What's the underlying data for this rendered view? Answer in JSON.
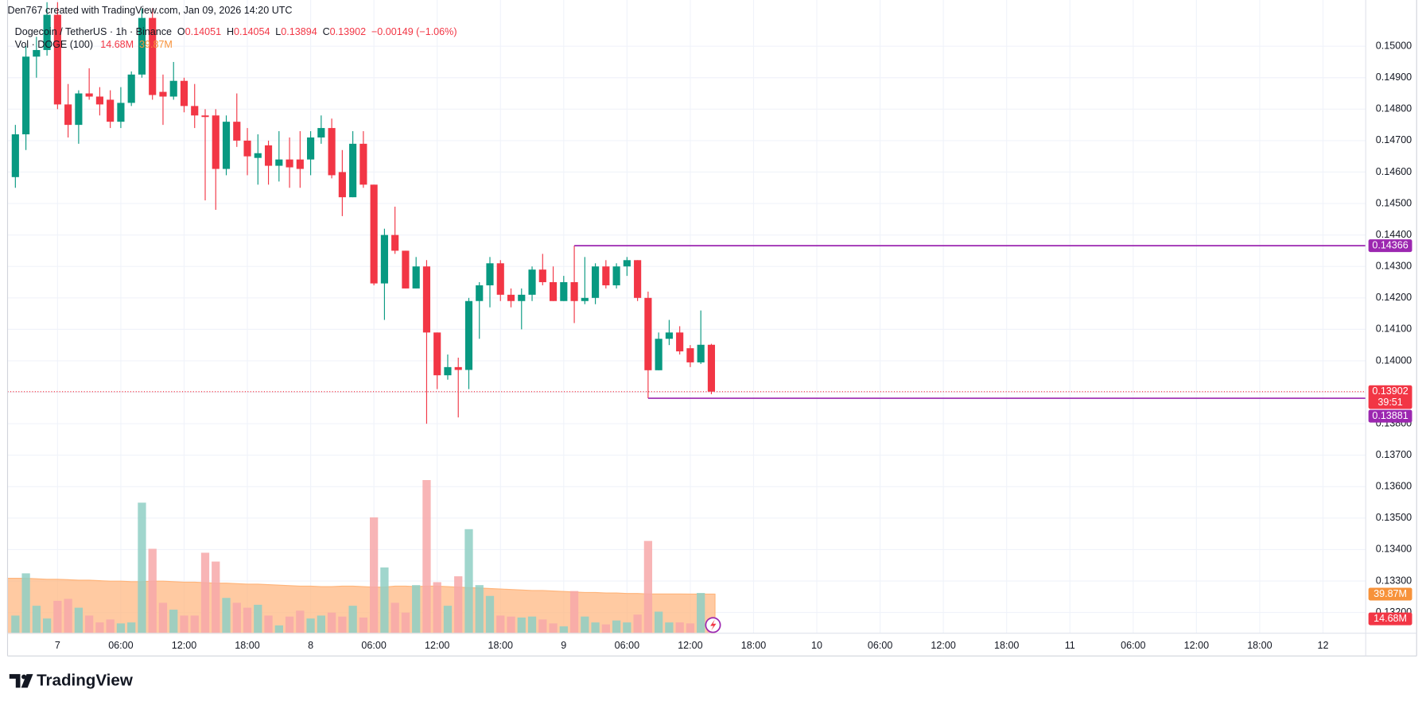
{
  "chart_data": {
    "type": "candlestick",
    "credit": "Den767 created with TradingView.com, Jan 09, 2026 14:20 UTC",
    "symbol": "Dogecoin / TetherUS · 1h · Binance",
    "ohlc_legend": [
      {
        "key": "O",
        "value": 0.14051
      },
      {
        "key": "H",
        "value": 0.14054
      },
      {
        "key": "L",
        "value": 0.13894
      },
      {
        "key": "C",
        "value": 0.13902
      }
    ],
    "change": {
      "value": -0.00149,
      "label": "−0.00149 (−1.06%)"
    },
    "volume_title": "Vol · DOGE (100)",
    "volume_last": {
      "value": 14.68,
      "label": "14.68M"
    },
    "volume_ma_last": {
      "value": 39.87,
      "label": "39.87M"
    },
    "countdown": "39:51",
    "brand": "TradingView",
    "up_color": "#089981",
    "down_color": "#f23645",
    "volume_up_color": "#8fcfc4",
    "volume_down_color": "#f7a8a9",
    "volume_ma_color": "#ffb47a",
    "level_color": "#9c27b0",
    "grid": true,
    "ylim": [
      0.13134,
      0.15147
    ],
    "yticks": [
      {
        "value": 0.132,
        "label": "0.13200"
      },
      {
        "value": 0.133,
        "label": "0.13300"
      },
      {
        "value": 0.134,
        "label": "0.13400"
      },
      {
        "value": 0.135,
        "label": "0.13500"
      },
      {
        "value": 0.136,
        "label": "0.13600"
      },
      {
        "value": 0.137,
        "label": "0.13700"
      },
      {
        "value": 0.138,
        "label": "0.13800"
      },
      {
        "value": 0.139,
        "label": "0.13900"
      },
      {
        "value": 0.14,
        "label": "0.14000"
      },
      {
        "value": 0.141,
        "label": "0.14100"
      },
      {
        "value": 0.142,
        "label": "0.14200"
      },
      {
        "value": 0.143,
        "label": "0.14300"
      },
      {
        "value": 0.144,
        "label": "0.14400"
      },
      {
        "value": 0.145,
        "label": "0.14500"
      },
      {
        "value": 0.146,
        "label": "0.14600"
      },
      {
        "value": 0.147,
        "label": "0.14700"
      },
      {
        "value": 0.148,
        "label": "0.14800"
      },
      {
        "value": 0.149,
        "label": "0.14900"
      },
      {
        "value": 0.15,
        "label": "0.15000"
      }
    ],
    "y2lim": [
      0,
      645
    ],
    "levels": [
      {
        "value": 0.14366,
        "start": 53
      },
      {
        "value": 0.13881,
        "start": 60
      }
    ],
    "categories": [
      null,
      null,
      null,
      null,
      "7",
      null,
      null,
      null,
      null,
      null,
      "06:00",
      null,
      null,
      null,
      null,
      null,
      "12:00",
      null,
      null,
      null,
      null,
      null,
      "18:00",
      null,
      null,
      null,
      null,
      null,
      "8",
      null,
      null,
      null,
      null,
      null,
      "06:00",
      null,
      null,
      null,
      null,
      null,
      "12:00",
      null,
      null,
      null,
      null,
      null,
      "18:00",
      null,
      null,
      null,
      null,
      null,
      "9",
      null,
      null,
      null,
      null,
      null,
      "06:00",
      null,
      null,
      null,
      null,
      null,
      "12:00",
      null,
      null,
      null,
      null,
      null,
      "18:00",
      null,
      null,
      null,
      null,
      null,
      "10",
      null,
      null,
      null,
      null,
      null,
      "06:00",
      null,
      null,
      null,
      null,
      null,
      "12:00",
      null,
      null,
      null,
      null,
      null,
      "18:00",
      null,
      null,
      null,
      null,
      null,
      "11",
      null,
      null,
      null,
      null,
      null,
      "06:00",
      null,
      null,
      null,
      null,
      null,
      "12:00",
      null,
      null,
      null,
      null,
      null,
      "18:00",
      null,
      null,
      null,
      null,
      null,
      "12",
      null,
      null,
      null
    ],
    "open": [
      0.14584,
      0.1472,
      0.14967,
      0.14988,
      0.151,
      0.14815,
      0.1475,
      0.1485,
      0.1484,
      0.1483,
      0.1476,
      0.1482,
      0.1491,
      0.1509,
      0.14855,
      0.1484,
      0.1489,
      0.1481,
      0.1478,
      0.1478,
      0.1461,
      0.1476,
      0.147,
      0.14645,
      0.14685,
      0.1462,
      0.1464,
      0.1464,
      0.1464,
      0.1471,
      0.1474,
      0.146,
      0.1452,
      0.1469,
      0.1456,
      0.14246,
      0.144,
      0.1435,
      0.1423,
      0.143,
      0.1409,
      0.13954,
      0.1398,
      0.13971,
      0.1419,
      0.1424,
      0.1431,
      0.1421,
      0.1419,
      0.1421,
      0.1429,
      0.1425,
      0.1419,
      0.1425,
      0.1419,
      0.142,
      0.143,
      0.1424,
      0.143,
      0.1432,
      0.142,
      0.1397,
      0.1407,
      0.1409,
      0.1404,
      0.13995,
      0.14051,
      null,
      null,
      null,
      null,
      null,
      null,
      null,
      null,
      null,
      null,
      null,
      null,
      null,
      null,
      null,
      null,
      null,
      null,
      null,
      null,
      null,
      null,
      null,
      null,
      null,
      null,
      null,
      null,
      null,
      null,
      null,
      null,
      null,
      null,
      null,
      null,
      null,
      null,
      null,
      null,
      null,
      null,
      null,
      null,
      null,
      null,
      null,
      null,
      null,
      null,
      null,
      null,
      null,
      null,
      null,
      null,
      null,
      null,
      null,
      null,
      null
    ],
    "high": [
      0.1475,
      0.15,
      0.1503,
      0.1514,
      0.1514,
      0.1488,
      0.1486,
      0.1493,
      0.1487,
      0.1486,
      0.1487,
      0.1492,
      0.1512,
      0.1512,
      0.1491,
      0.1495,
      0.149,
      0.1488,
      0.148,
      0.148,
      0.1478,
      0.1485,
      0.1474,
      0.1472,
      0.147,
      0.1473,
      0.1471,
      0.1473,
      0.1473,
      0.1478,
      0.1477,
      0.1467,
      0.1473,
      0.1473,
      0.1456,
      0.1442,
      0.1449,
      0.1435,
      0.1433,
      0.1432,
      0.1409,
      0.1402,
      0.1401,
      0.142,
      0.1425,
      0.1433,
      0.1432,
      0.1423,
      0.1423,
      0.143,
      0.1434,
      0.143,
      0.1427,
      0.14366,
      0.1433,
      0.1431,
      0.1432,
      0.1431,
      0.1433,
      0.1432,
      0.1422,
      0.1409,
      0.1413,
      0.1411,
      0.1405,
      0.1416,
      0.14054,
      null,
      null,
      null,
      null,
      null,
      null,
      null,
      null,
      null,
      null,
      null,
      null,
      null,
      null,
      null,
      null,
      null,
      null,
      null,
      null,
      null,
      null,
      null,
      null,
      null,
      null,
      null,
      null,
      null,
      null,
      null,
      null,
      null,
      null,
      null,
      null,
      null,
      null,
      null,
      null,
      null,
      null,
      null,
      null,
      null,
      null,
      null,
      null,
      null,
      null,
      null,
      null,
      null,
      null,
      null,
      null,
      null,
      null,
      null,
      null,
      null
    ],
    "low": [
      0.1455,
      0.1467,
      0.149,
      0.1497,
      0.148,
      0.1471,
      0.1469,
      0.1483,
      0.1478,
      0.1474,
      0.1474,
      0.1481,
      0.149,
      0.1483,
      0.1475,
      0.1483,
      0.1479,
      0.1474,
      0.1451,
      0.1448,
      0.1459,
      0.1468,
      0.1459,
      0.1456,
      0.1456,
      0.1457,
      0.1455,
      0.1455,
      0.1459,
      0.1469,
      0.1458,
      0.1446,
      0.1452,
      0.1455,
      0.1424,
      0.1413,
      0.1434,
      0.1423,
      0.1423,
      0.138,
      0.1391,
      0.1394,
      0.1382,
      0.1391,
      0.1407,
      0.1417,
      0.1419,
      0.1417,
      0.141,
      0.1419,
      0.1424,
      0.1419,
      0.1419,
      0.1412,
      0.1418,
      0.1418,
      0.1423,
      0.1423,
      0.1427,
      0.1419,
      0.13881,
      0.1397,
      0.1405,
      0.1402,
      0.1398,
      0.1399,
      0.13894,
      null,
      null,
      null,
      null,
      null,
      null,
      null,
      null,
      null,
      null,
      null,
      null,
      null,
      null,
      null,
      null,
      null,
      null,
      null,
      null,
      null,
      null,
      null,
      null,
      null,
      null,
      null,
      null,
      null,
      null,
      null,
      null,
      null,
      null,
      null,
      null,
      null,
      null,
      null,
      null,
      null,
      null,
      null,
      null,
      null,
      null,
      null,
      null,
      null,
      null,
      null,
      null,
      null,
      null,
      null,
      null,
      null,
      null,
      null,
      null,
      null
    ],
    "close": [
      0.1472,
      0.14967,
      0.14988,
      0.151,
      0.14815,
      0.1475,
      0.1485,
      0.1484,
      0.14815,
      0.1476,
      0.1482,
      0.1491,
      0.1509,
      0.14845,
      0.1484,
      0.1489,
      0.1481,
      0.1478,
      0.14775,
      0.1461,
      0.1476,
      0.147,
      0.1465,
      0.1466,
      0.1462,
      0.1464,
      0.14615,
      0.1461,
      0.1471,
      0.1474,
      0.1459,
      0.1452,
      0.1469,
      0.1456,
      0.14246,
      0.144,
      0.1435,
      0.1423,
      0.143,
      0.1409,
      0.13954,
      0.1398,
      0.13971,
      0.1419,
      0.1424,
      0.1431,
      0.1421,
      0.1419,
      0.1421,
      0.1429,
      0.1425,
      0.1419,
      0.1425,
      0.1419,
      0.142,
      0.143,
      0.1424,
      0.143,
      0.1432,
      0.142,
      0.1397,
      0.1407,
      0.1409,
      0.1403,
      0.13995,
      0.14051,
      0.13902,
      null,
      null,
      null,
      null,
      null,
      null,
      null,
      null,
      null,
      null,
      null,
      null,
      null,
      null,
      null,
      null,
      null,
      null,
      null,
      null,
      null,
      null,
      null,
      null,
      null,
      null,
      null,
      null,
      null,
      null,
      null,
      null,
      null,
      null,
      null,
      null,
      null,
      null,
      null,
      null,
      null,
      null,
      null,
      null,
      null,
      null,
      null,
      null,
      null,
      null,
      null,
      null,
      null,
      null,
      null,
      null,
      null,
      null,
      null,
      null,
      null
    ],
    "volume": [
      18,
      61,
      28,
      15,
      33,
      35,
      26,
      18,
      11,
      14,
      10,
      11,
      133,
      86,
      31,
      24,
      18,
      18,
      82,
      73,
      36,
      31,
      26,
      29,
      18,
      8,
      17,
      23,
      15,
      18,
      21,
      17,
      28,
      16,
      118,
      67,
      31,
      21,
      49,
      156,
      52,
      28,
      58,
      106,
      49,
      38,
      18,
      17,
      16,
      17,
      14,
      10,
      7,
      43,
      17,
      11,
      9,
      13,
      11,
      19,
      94,
      22,
      11,
      11,
      10,
      41,
      14.68,
      null,
      null,
      null,
      null,
      null,
      null,
      null,
      null,
      null,
      null,
      null,
      null,
      null,
      null,
      null,
      null,
      null,
      null,
      null,
      null,
      null,
      null,
      null,
      null,
      null,
      null,
      null,
      null,
      null,
      null,
      null,
      null,
      null,
      null,
      null,
      null,
      null,
      null,
      null,
      null,
      null,
      null,
      null,
      null,
      null,
      null,
      null,
      null,
      null,
      null,
      null,
      null,
      null,
      null,
      null,
      null,
      null,
      null,
      null,
      null,
      null
    ],
    "volume_ma": [
      56,
      56,
      55.5,
      55,
      55,
      54.5,
      54,
      54,
      53.5,
      53,
      53,
      52.5,
      52.5,
      53,
      53,
      52.5,
      52,
      52,
      51.5,
      51,
      51,
      50.5,
      50,
      50,
      49.5,
      49,
      48.5,
      48,
      48,
      47.5,
      47.5,
      48,
      48,
      47.5,
      47,
      47,
      48,
      48,
      47.5,
      48,
      48,
      47.5,
      47,
      46.5,
      46,
      45.5,
      45,
      44.5,
      44,
      43.5,
      43.5,
      43,
      42.5,
      42,
      41.5,
      41.5,
      41,
      41,
      40.5,
      40.5,
      40,
      40,
      40,
      40,
      39.9,
      39.9,
      39.87,
      null,
      null,
      null,
      null,
      null,
      null,
      null,
      null,
      null,
      null,
      null,
      null,
      null,
      null,
      null,
      null,
      null,
      null,
      null,
      null,
      null,
      null,
      null,
      null,
      null,
      null,
      null,
      null,
      null,
      null,
      null,
      null,
      null,
      null,
      null,
      null,
      null,
      null,
      null,
      null,
      null,
      null,
      null,
      null,
      null,
      null,
      null,
      null,
      null,
      null,
      null,
      null,
      null,
      null,
      null,
      null,
      null,
      null,
      null,
      null,
      null
    ]
  }
}
